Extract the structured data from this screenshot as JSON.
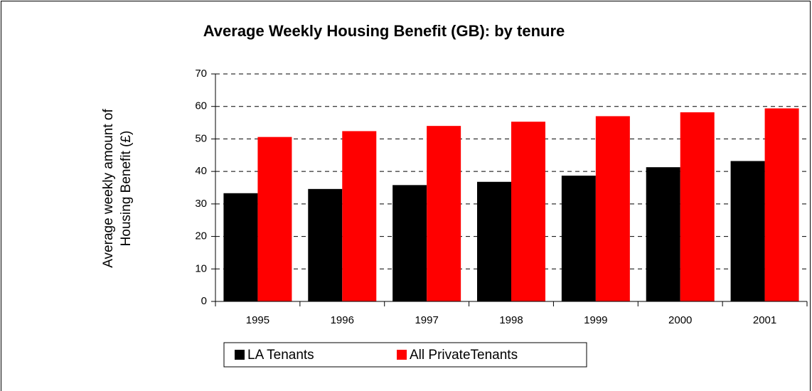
{
  "chart_data": {
    "type": "bar",
    "title": "Average Weekly Housing Benefit (GB): by tenure",
    "y_label": [
      "Average weekly amount of",
      "Housing Benefit (£)"
    ],
    "categories": [
      "1995",
      "1996",
      "1997",
      "1998",
      "1999",
      "2000",
      "2001"
    ],
    "series": [
      {
        "name": "LA Tenants",
        "color": "#000000",
        "values": [
          33.3,
          34.6,
          35.8,
          36.8,
          38.7,
          41.3,
          43.2
        ]
      },
      {
        "name": "All PrivateTenants",
        "color": "#ff0000",
        "values": [
          50.6,
          52.4,
          54.0,
          55.3,
          57.0,
          58.2,
          59.4
        ]
      }
    ],
    "ylim": [
      0,
      70
    ],
    "yticks": [
      0,
      10,
      20,
      30,
      40,
      50,
      60,
      70
    ],
    "grid": true,
    "legend": "bottom"
  }
}
